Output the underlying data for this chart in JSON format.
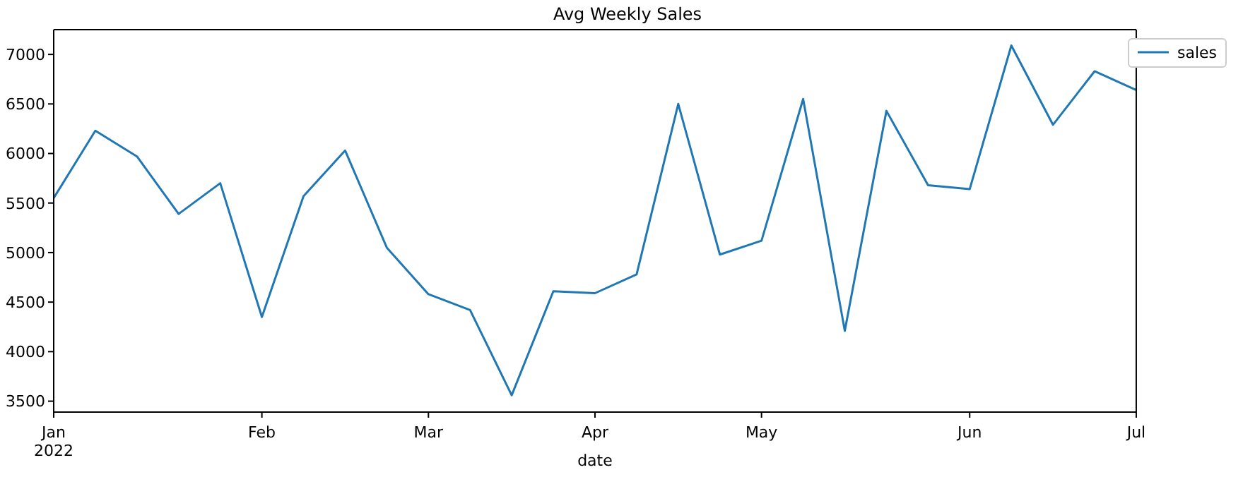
{
  "chart_data": {
    "type": "line",
    "title": "Avg Weekly Sales",
    "xlabel": "date",
    "x": [
      "2022-01-02",
      "2022-01-09",
      "2022-01-16",
      "2022-01-23",
      "2022-01-30",
      "2022-02-06",
      "2022-02-13",
      "2022-02-20",
      "2022-02-27",
      "2022-03-06",
      "2022-03-13",
      "2022-03-20",
      "2022-03-27",
      "2022-04-03",
      "2022-04-10",
      "2022-04-17",
      "2022-04-24",
      "2022-05-01",
      "2022-05-08",
      "2022-05-15",
      "2022-05-22",
      "2022-05-29",
      "2022-06-05",
      "2022-06-12",
      "2022-06-19",
      "2022-06-26",
      "2022-07-03"
    ],
    "series": [
      {
        "name": "sales",
        "color": "#1f77b4",
        "values": [
          5550,
          6230,
          5970,
          5390,
          5700,
          4350,
          5570,
          6030,
          5050,
          4580,
          4420,
          3560,
          4610,
          4590,
          4780,
          6500,
          4980,
          5120,
          6550,
          4210,
          6430,
          5680,
          5640,
          7090,
          6290,
          6830,
          6640
        ]
      }
    ],
    "xlim": [
      "2022-01-02",
      "2022-07-03"
    ],
    "xticks": [
      {
        "value": "2022-01-02",
        "label": "Jan\n2022"
      },
      {
        "value": "2022-02-06",
        "label": "Feb"
      },
      {
        "value": "2022-03-06",
        "label": "Mar"
      },
      {
        "value": "2022-04-03",
        "label": "Apr"
      },
      {
        "value": "2022-05-01",
        "label": "May"
      },
      {
        "value": "2022-06-05",
        "label": "Jun"
      },
      {
        "value": "2022-07-03",
        "label": "Jul"
      }
    ],
    "ylim": [
      3390,
      7250
    ],
    "yticks": [
      3500,
      4000,
      4500,
      5000,
      5500,
      6000,
      6500,
      7000
    ],
    "grid": false,
    "legend": "top right",
    "marker": "none",
    "line_style": "solid"
  }
}
